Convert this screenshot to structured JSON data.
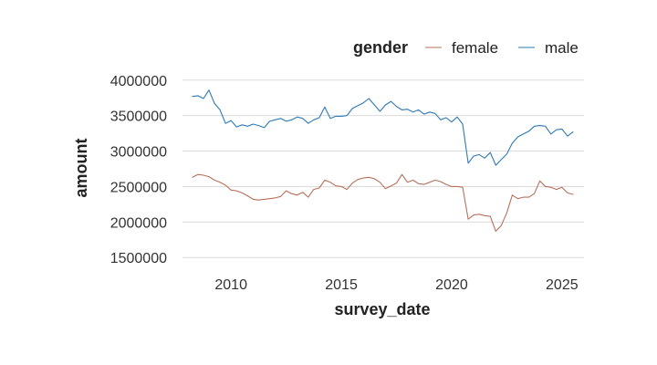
{
  "chart_data": {
    "type": "line",
    "xlabel": "survey_date",
    "ylabel": "amount",
    "x_range": [
      2007.8,
      2026.0
    ],
    "ylim": [
      1400000,
      4100000
    ],
    "x_ticks": [
      2010,
      2015,
      2020,
      2025
    ],
    "x_tick_labels": [
      "2010",
      "2015",
      "2020",
      "2025"
    ],
    "y_ticks": [
      1500000,
      2000000,
      2500000,
      3000000,
      3500000,
      4000000
    ],
    "y_tick_labels": [
      "1500000",
      "2000000",
      "2500000",
      "3000000",
      "3500000",
      "4000000"
    ],
    "grid": true,
    "legend": {
      "title": "gender",
      "position": "top-right",
      "entries": [
        "female",
        "male"
      ]
    },
    "series": [
      {
        "name": "female",
        "color": "#b8705a",
        "points": [
          [
            2008.25,
            2630000
          ],
          [
            2008.5,
            2670000
          ],
          [
            2008.75,
            2660000
          ],
          [
            2009.0,
            2640000
          ],
          [
            2009.25,
            2590000
          ],
          [
            2009.5,
            2560000
          ],
          [
            2009.75,
            2520000
          ],
          [
            2010.0,
            2450000
          ],
          [
            2010.25,
            2440000
          ],
          [
            2010.5,
            2410000
          ],
          [
            2010.75,
            2370000
          ],
          [
            2011.0,
            2320000
          ],
          [
            2011.25,
            2310000
          ],
          [
            2011.5,
            2320000
          ],
          [
            2011.75,
            2330000
          ],
          [
            2012.0,
            2340000
          ],
          [
            2012.25,
            2360000
          ],
          [
            2012.5,
            2440000
          ],
          [
            2012.75,
            2400000
          ],
          [
            2013.0,
            2380000
          ],
          [
            2013.25,
            2420000
          ],
          [
            2013.5,
            2350000
          ],
          [
            2013.75,
            2460000
          ],
          [
            2014.0,
            2480000
          ],
          [
            2014.25,
            2590000
          ],
          [
            2014.5,
            2560000
          ],
          [
            2014.75,
            2510000
          ],
          [
            2015.0,
            2500000
          ],
          [
            2015.25,
            2460000
          ],
          [
            2015.5,
            2550000
          ],
          [
            2015.75,
            2600000
          ],
          [
            2016.0,
            2620000
          ],
          [
            2016.25,
            2630000
          ],
          [
            2016.5,
            2610000
          ],
          [
            2016.75,
            2560000
          ],
          [
            2017.0,
            2470000
          ],
          [
            2017.25,
            2510000
          ],
          [
            2017.5,
            2550000
          ],
          [
            2017.75,
            2670000
          ],
          [
            2018.0,
            2560000
          ],
          [
            2018.25,
            2590000
          ],
          [
            2018.5,
            2540000
          ],
          [
            2018.75,
            2530000
          ],
          [
            2019.0,
            2560000
          ],
          [
            2019.25,
            2590000
          ],
          [
            2019.5,
            2570000
          ],
          [
            2019.75,
            2530000
          ],
          [
            2020.0,
            2500000
          ],
          [
            2020.25,
            2500000
          ],
          [
            2020.5,
            2490000
          ],
          [
            2020.75,
            2040000
          ],
          [
            2021.0,
            2100000
          ],
          [
            2021.25,
            2110000
          ],
          [
            2021.5,
            2090000
          ],
          [
            2021.75,
            2080000
          ],
          [
            2022.0,
            1870000
          ],
          [
            2022.25,
            1950000
          ],
          [
            2022.5,
            2130000
          ],
          [
            2022.75,
            2380000
          ],
          [
            2023.0,
            2330000
          ],
          [
            2023.25,
            2350000
          ],
          [
            2023.5,
            2350000
          ],
          [
            2023.75,
            2400000
          ],
          [
            2024.0,
            2580000
          ],
          [
            2024.25,
            2500000
          ],
          [
            2024.5,
            2490000
          ],
          [
            2024.75,
            2460000
          ],
          [
            2025.0,
            2490000
          ],
          [
            2025.25,
            2410000
          ],
          [
            2025.5,
            2390000
          ]
        ]
      },
      {
        "name": "male",
        "color": "#2e7ab8",
        "points": [
          [
            2008.25,
            3770000
          ],
          [
            2008.5,
            3780000
          ],
          [
            2008.75,
            3740000
          ],
          [
            2009.0,
            3860000
          ],
          [
            2009.25,
            3670000
          ],
          [
            2009.5,
            3580000
          ],
          [
            2009.75,
            3390000
          ],
          [
            2010.0,
            3430000
          ],
          [
            2010.25,
            3340000
          ],
          [
            2010.5,
            3370000
          ],
          [
            2010.75,
            3350000
          ],
          [
            2011.0,
            3380000
          ],
          [
            2011.25,
            3360000
          ],
          [
            2011.5,
            3330000
          ],
          [
            2011.75,
            3420000
          ],
          [
            2012.0,
            3440000
          ],
          [
            2012.25,
            3460000
          ],
          [
            2012.5,
            3420000
          ],
          [
            2012.75,
            3440000
          ],
          [
            2013.0,
            3480000
          ],
          [
            2013.25,
            3460000
          ],
          [
            2013.5,
            3390000
          ],
          [
            2013.75,
            3440000
          ],
          [
            2014.0,
            3470000
          ],
          [
            2014.25,
            3620000
          ],
          [
            2014.5,
            3460000
          ],
          [
            2014.75,
            3490000
          ],
          [
            2015.0,
            3490000
          ],
          [
            2015.25,
            3500000
          ],
          [
            2015.5,
            3600000
          ],
          [
            2015.75,
            3640000
          ],
          [
            2016.0,
            3680000
          ],
          [
            2016.25,
            3740000
          ],
          [
            2016.5,
            3650000
          ],
          [
            2016.75,
            3560000
          ],
          [
            2017.0,
            3650000
          ],
          [
            2017.25,
            3700000
          ],
          [
            2017.5,
            3630000
          ],
          [
            2017.75,
            3580000
          ],
          [
            2018.0,
            3590000
          ],
          [
            2018.25,
            3550000
          ],
          [
            2018.5,
            3580000
          ],
          [
            2018.75,
            3520000
          ],
          [
            2019.0,
            3550000
          ],
          [
            2019.25,
            3530000
          ],
          [
            2019.5,
            3440000
          ],
          [
            2019.75,
            3470000
          ],
          [
            2020.0,
            3410000
          ],
          [
            2020.25,
            3480000
          ],
          [
            2020.5,
            3380000
          ],
          [
            2020.75,
            2830000
          ],
          [
            2021.0,
            2930000
          ],
          [
            2021.25,
            2950000
          ],
          [
            2021.5,
            2900000
          ],
          [
            2021.75,
            2980000
          ],
          [
            2022.0,
            2800000
          ],
          [
            2022.25,
            2880000
          ],
          [
            2022.5,
            2960000
          ],
          [
            2022.75,
            3110000
          ],
          [
            2023.0,
            3200000
          ],
          [
            2023.25,
            3240000
          ],
          [
            2023.5,
            3280000
          ],
          [
            2023.75,
            3350000
          ],
          [
            2024.0,
            3360000
          ],
          [
            2024.25,
            3350000
          ],
          [
            2024.5,
            3240000
          ],
          [
            2024.75,
            3300000
          ],
          [
            2025.0,
            3310000
          ],
          [
            2025.25,
            3210000
          ],
          [
            2025.5,
            3270000
          ]
        ]
      }
    ]
  }
}
